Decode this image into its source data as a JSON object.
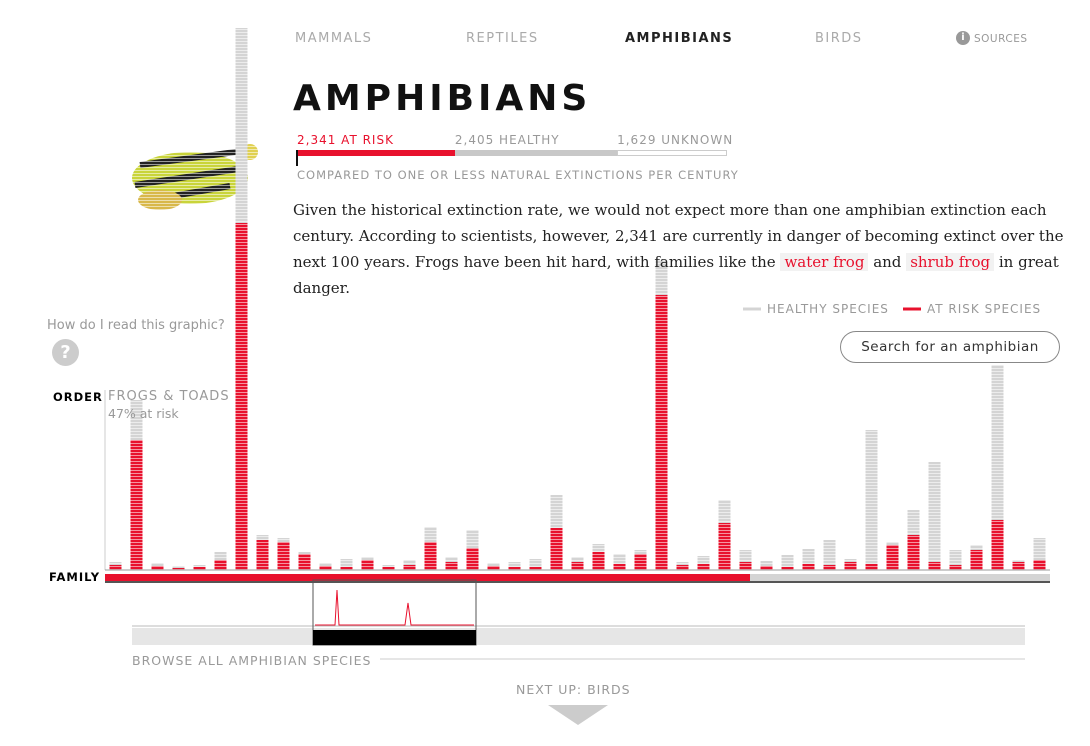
{
  "nav": {
    "items": [
      "MAMMALS",
      "REPTILES",
      "AMPHIBIANS",
      "BIRDS"
    ],
    "info_icon": "i",
    "sources": "SOURCES"
  },
  "header": {
    "title": "AMPHIBIANS",
    "stats": [
      {
        "count": 2341,
        "label": "2,341 AT RISK",
        "color": "#e8112d"
      },
      {
        "count": 2405,
        "label": "2,405 HEALTHY",
        "color": "#c8c8c8"
      },
      {
        "count": 1629,
        "label": "1,629 UNKNOWN",
        "color": "#ffffff"
      }
    ],
    "caption": "COMPARED TO ONE OR LESS NATURAL EXTINCTIONS PER CENTURY"
  },
  "intro": {
    "parts": [
      "Given the historical extinction rate, we would not expect more than one amphibian extinction each century. According to scientists, however, 2,341 are currently in danger of becoming extinct over the next 100 years. Frogs have been hit hard, with families like the ",
      "water frog",
      " and ",
      "shrub frog",
      " in great danger."
    ]
  },
  "help": {
    "text": "How do I read this graphic?",
    "icon": "?"
  },
  "search": "Search for an amphibian",
  "chart_data": {
    "type": "bar",
    "stacked": true,
    "categories": [
      null,
      null,
      null,
      null,
      null,
      null,
      null,
      null,
      null,
      null,
      null,
      null,
      null,
      null,
      null,
      null,
      null,
      null,
      null,
      null,
      null,
      null,
      null,
      null,
      null,
      null,
      null,
      null,
      null,
      null,
      null,
      null,
      null,
      null,
      null,
      null,
      null,
      null,
      null,
      null,
      null,
      null,
      null,
      null,
      null
    ],
    "series": [
      {
        "name": "AT RISK SPECIES",
        "color": "#e8112d",
        "values": [
          5,
          130,
          4,
          2,
          3,
          10,
          347,
          30,
          28,
          16,
          4,
          3,
          10,
          3,
          5,
          28,
          8,
          22,
          4,
          3,
          3,
          42,
          8,
          18,
          6,
          16,
          275,
          5,
          6,
          47,
          8,
          4,
          3,
          6,
          5,
          8,
          6,
          25,
          35,
          8,
          5,
          20,
          50,
          8,
          10
        ]
      },
      {
        "name": "HEALTHY SPECIES",
        "color": "#d4d4d4",
        "values": [
          3,
          40,
          3,
          2,
          2,
          8,
          195,
          5,
          4,
          2,
          3,
          8,
          3,
          2,
          5,
          15,
          5,
          18,
          3,
          5,
          8,
          33,
          5,
          8,
          10,
          4,
          35,
          3,
          8,
          23,
          12,
          5,
          12,
          15,
          25,
          3,
          134,
          3,
          25,
          100,
          15,
          5,
          155,
          2,
          22
        ]
      }
    ],
    "ylim": [
      0,
      545
    ],
    "order_label": "ORDER",
    "family_label": "FAMILY",
    "tooltip": {
      "title": "FROGS & TOADS",
      "subtitle": "47% at risk"
    }
  },
  "browse": "BROWSE ALL AMPHIBIAN SPECIES",
  "next": "NEXT UP: BIRDS"
}
